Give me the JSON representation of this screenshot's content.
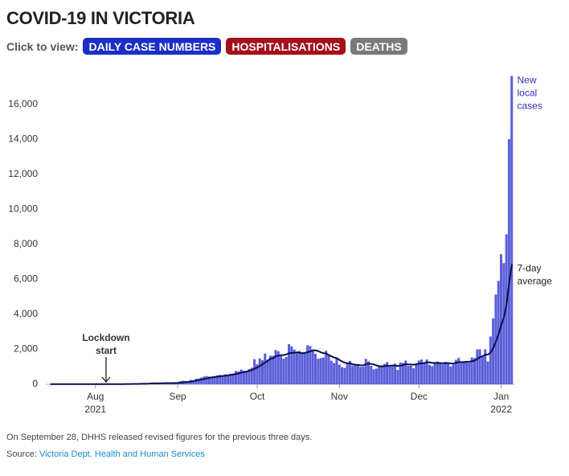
{
  "title": "COVID-19 IN VICTORIA",
  "nav": {
    "label": "Click to view:",
    "buttons": [
      {
        "label": "DAILY CASE NUMBERS",
        "color": "#1c2fc4"
      },
      {
        "label": "HOSPITALISATIONS",
        "color": "#a3101c"
      },
      {
        "label": "DEATHS",
        "color": "#7a7a7a"
      }
    ]
  },
  "chart_data": {
    "type": "bar",
    "categories": [
      null,
      null,
      null,
      null,
      null,
      null,
      null,
      null,
      null,
      null,
      null,
      null,
      null,
      null,
      null,
      null,
      null,
      "Aug 2021",
      null,
      null,
      null,
      null,
      null,
      null,
      null,
      null,
      null,
      null,
      null,
      null,
      null,
      null,
      null,
      null,
      null,
      null,
      null,
      null,
      null,
      null,
      null,
      null,
      null,
      null,
      null,
      null,
      null,
      null,
      "Sep",
      null,
      null,
      null,
      null,
      null,
      null,
      null,
      null,
      null,
      null,
      null,
      null,
      null,
      null,
      null,
      null,
      null,
      null,
      null,
      null,
      null,
      null,
      null,
      null,
      null,
      null,
      null,
      null,
      null,
      "Oct",
      null,
      null,
      null,
      null,
      null,
      null,
      null,
      null,
      null,
      null,
      null,
      null,
      null,
      null,
      null,
      null,
      null,
      null,
      null,
      null,
      null,
      null,
      null,
      null,
      null,
      null,
      null,
      null,
      null,
      null,
      "Nov",
      null,
      null,
      null,
      null,
      null,
      null,
      null,
      null,
      null,
      null,
      null,
      null,
      null,
      null,
      null,
      null,
      null,
      null,
      null,
      null,
      null,
      null,
      null,
      null,
      null,
      null,
      null,
      null,
      null,
      "Dec",
      null,
      null,
      null,
      null,
      null,
      null,
      null,
      null,
      null,
      null,
      null,
      null,
      null,
      null,
      null,
      null,
      null,
      null,
      null,
      null,
      null,
      null,
      null,
      null,
      null,
      null,
      null,
      null,
      null,
      null,
      "Jan 2022",
      null,
      null,
      null,
      null
    ],
    "series": [
      {
        "name": "New local cases",
        "type": "bar",
        "color": "#5a60d8",
        "label_color": "#2a33b8",
        "values": [
          2,
          10,
          19,
          13,
          13,
          11,
          26,
          14,
          12,
          11,
          10,
          24,
          18,
          11,
          3,
          6,
          2,
          0,
          6,
          6,
          5,
          8,
          15,
          29,
          11,
          9,
          20,
          21,
          21,
          20,
          24,
          22,
          25,
          24,
          57,
          55,
          61,
          61,
          65,
          71,
          45,
          45,
          80,
          79,
          64,
          92,
          73,
          76,
          120,
          176,
          208,
          190,
          183,
          246,
          221,
          324,
          334,
          392,
          450,
          473,
          441,
          445,
          423,
          510,
          535,
          507,
          567,
          507,
          603,
          628,
          766,
          733,
          847,
          779,
          705,
          867,
          950,
          1438,
          1143,
          1488,
          1377,
          1763,
          1420,
          1638,
          1638,
          1965,
          1890,
          1612,
          1466,
          1571,
          2297,
          2179,
          1993,
          1838,
          1903,
          1749,
          1841,
          2232,
          2189,
          1935,
          1750,
          1461,
          1510,
          1534,
          1923,
          1656,
          1355,
          1221,
          1471,
          1126,
          989,
          941,
          1247,
          1343,
          1069,
          1115,
          1126,
          1002,
          1003,
          1461,
          1313,
          1052,
          860,
          906,
          1007,
          1007,
          1167,
          1273,
          1029,
          1075,
          1179,
          827,
          1254,
          1221,
          1362,
          1061,
          1069,
          918,
          1189,
          1365,
          1419,
          1193,
          1424,
          1118,
          1041,
          1262,
          1312,
          1206,
          1140,
          1290,
          1240,
          1026,
          1189,
          1405,
          1510,
          1222,
          1302,
          1240,
          1245,
          1538,
          1503,
          1999,
          2005,
          1608,
          1999,
          1302,
          2738,
          3767,
          5137,
          5919,
          7442,
          6931,
          8577,
          14020,
          17636
        ]
      },
      {
        "name": "7-day average",
        "type": "line",
        "color": "#0b0f4d",
        "label_color": "#222",
        "values": [
          15,
          14,
          14,
          14,
          14,
          15,
          15,
          15,
          15,
          14,
          14,
          14,
          15,
          15,
          14,
          12,
          11,
          10,
          9,
          8,
          8,
          7,
          8,
          10,
          11,
          12,
          13,
          15,
          18,
          19,
          20,
          22,
          22,
          22,
          27,
          33,
          38,
          43,
          49,
          55,
          60,
          61,
          63,
          66,
          67,
          71,
          70,
          72,
          78,
          92,
          111,
          129,
          144,
          166,
          186,
          215,
          243,
          271,
          300,
          335,
          368,
          395,
          418,
          442,
          462,
          476,
          495,
          514,
          532,
          555,
          591,
          627,
          668,
          700,
          733,
          779,
          815,
          900,
          960,
          1050,
          1140,
          1260,
          1340,
          1470,
          1490,
          1600,
          1640,
          1670,
          1680,
          1710,
          1780,
          1800,
          1800,
          1830,
          1810,
          1780,
          1800,
          1840,
          1880,
          1950,
          1940,
          1900,
          1830,
          1780,
          1760,
          1680,
          1600,
          1530,
          1500,
          1400,
          1310,
          1240,
          1210,
          1200,
          1150,
          1120,
          1110,
          1090,
          1080,
          1150,
          1180,
          1170,
          1140,
          1080,
          1040,
          1030,
          1040,
          1060,
          1060,
          1080,
          1080,
          1050,
          1070,
          1100,
          1160,
          1140,
          1140,
          1120,
          1150,
          1180,
          1200,
          1220,
          1260,
          1250,
          1230,
          1220,
          1220,
          1220,
          1200,
          1210,
          1220,
          1190,
          1200,
          1230,
          1270,
          1270,
          1270,
          1290,
          1300,
          1320,
          1360,
          1450,
          1560,
          1610,
          1700,
          1700,
          1810,
          2080,
          2440,
          2880,
          3390,
          3810,
          4570,
          5780,
          6870
        ]
      }
    ],
    "ylim": [
      0,
      17750
    ],
    "yticks": [
      0,
      {
        "value": 2000,
        "label": "2,000"
      },
      {
        "value": 4000,
        "label": "4,000"
      },
      {
        "value": 6000,
        "label": "6,000"
      },
      {
        "value": 8000,
        "label": "8,000"
      },
      {
        "value": 10000,
        "label": "10,000"
      },
      {
        "value": 12000,
        "label": "12,000"
      },
      {
        "value": 14000,
        "label": "14,000"
      },
      {
        "value": 16000,
        "label": "16,000"
      }
    ],
    "grid": false,
    "annotations": [
      {
        "text": "Lockdown start"
      }
    ]
  },
  "footer": {
    "note": "On September 28, DHHS released revised figures for the previous three days.",
    "source_label": "Source:",
    "source_link": "Victoria Dept. Health and Human Services"
  }
}
